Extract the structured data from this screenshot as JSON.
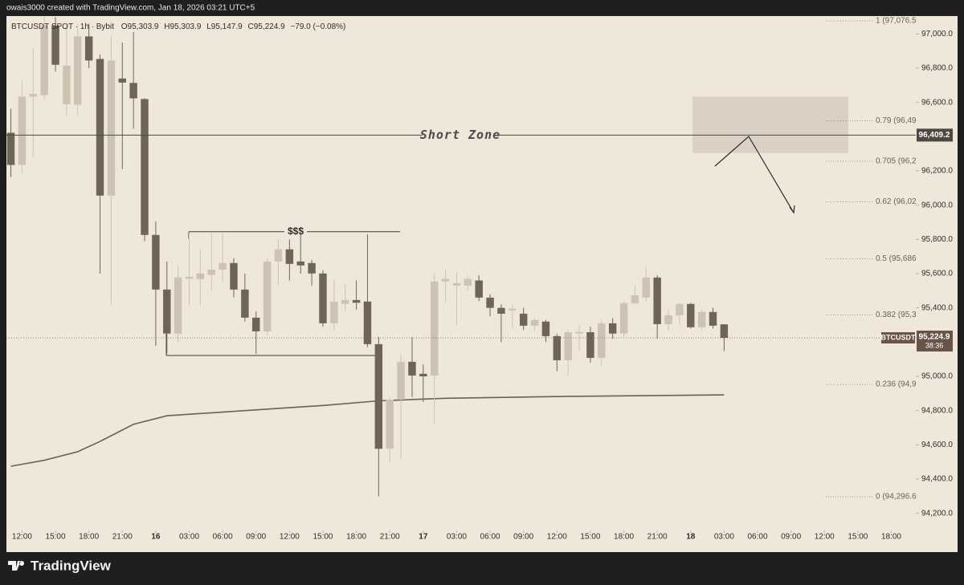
{
  "header": "owais3000 created with TradingView.com, Jan 18, 2026 03:21 UTC+5",
  "footer": {
    "brand": "TradingView"
  },
  "chart_data": {
    "type": "candlestick",
    "legend": {
      "symbol": "BTCUSDT SPOT · 1h · Bybit",
      "open": "O95,303.9",
      "high": "H95,303.9",
      "low": "L95,147.9",
      "close": "C95,224.9",
      "change": "−79.0 (−0.08%)"
    },
    "up_color": "#cdc3b2",
    "down_color": "#6e6557",
    "xlim": [
      -1.4,
      80.2
    ],
    "xticks": [
      {
        "value": 0,
        "label": "12:00"
      },
      {
        "value": 3,
        "label": "15:00"
      },
      {
        "value": 6,
        "label": "18:00"
      },
      {
        "value": 9,
        "label": "21:00"
      },
      {
        "value": 12,
        "label": "16"
      },
      {
        "value": 15,
        "label": "03:00"
      },
      {
        "value": 18,
        "label": "06:00"
      },
      {
        "value": 21,
        "label": "09:00"
      },
      {
        "value": 24,
        "label": "12:00"
      },
      {
        "value": 27,
        "label": "15:00"
      },
      {
        "value": 30,
        "label": "18:00"
      },
      {
        "value": 33,
        "label": "21:00"
      },
      {
        "value": 36,
        "label": "17"
      },
      {
        "value": 39,
        "label": "03:00"
      },
      {
        "value": 42,
        "label": "06:00"
      },
      {
        "value": 45,
        "label": "09:00"
      },
      {
        "value": 48,
        "label": "12:00"
      },
      {
        "value": 51,
        "label": "15:00"
      },
      {
        "value": 54,
        "label": "18:00"
      },
      {
        "value": 57,
        "label": "21:00"
      },
      {
        "value": 60,
        "label": "18"
      },
      {
        "value": 63,
        "label": "03:00"
      },
      {
        "value": 66,
        "label": "06:00"
      },
      {
        "value": 69,
        "label": "09:00"
      },
      {
        "value": 72,
        "label": "12:00"
      },
      {
        "value": 75,
        "label": "15:00"
      },
      {
        "value": 78,
        "label": "18:00"
      }
    ],
    "ylim": [
      94100,
      97100
    ],
    "yticks": [
      {
        "value": 97000,
        "label": "97,000.0"
      },
      {
        "value": 96800,
        "label": "96,800.0"
      },
      {
        "value": 96600,
        "label": "96,600.0"
      },
      {
        "value": 96200,
        "label": "96,200.0"
      },
      {
        "value": 96000,
        "label": "96,000.0"
      },
      {
        "value": 95800,
        "label": "95,800.0"
      },
      {
        "value": 95600,
        "label": "95,600.0"
      },
      {
        "value": 95400,
        "label": "95,400.0"
      },
      {
        "value": 95000,
        "label": "95,000.0"
      },
      {
        "value": 94800,
        "label": "94,800.0"
      },
      {
        "value": 94600,
        "label": "94,600.0"
      },
      {
        "value": 94400,
        "label": "94,400.0"
      },
      {
        "value": 94200,
        "label": "94,200.0"
      }
    ],
    "series": [
      {
        "name": "BTCUSDT",
        "x": [
          -1,
          0,
          1,
          2,
          3,
          4,
          5,
          6,
          7,
          8,
          9,
          10,
          11,
          12,
          13,
          14,
          15,
          16,
          17,
          18,
          19,
          20,
          21,
          22,
          23,
          24,
          25,
          26,
          27,
          28,
          29,
          30,
          31,
          32,
          33,
          34,
          35,
          36,
          37,
          38,
          39,
          40,
          41,
          42,
          43,
          44,
          45,
          46,
          47,
          48,
          49,
          50,
          51,
          52,
          53,
          54,
          55,
          56,
          57,
          58,
          59,
          60,
          61,
          62,
          63
        ],
        "open": [
          96423,
          96235,
          96634,
          96643,
          97050,
          96590,
          96587,
          96986,
          96854,
          96056,
          96740,
          96714,
          96620,
          95826,
          95507,
          95250,
          95570,
          95569,
          95592,
          95624,
          95662,
          95507,
          95343,
          95263,
          95671,
          95742,
          95671,
          95662,
          95601,
          95310,
          95423,
          95446,
          95437,
          95188,
          94577,
          94864,
          95085,
          95015,
          95005,
          95554,
          95530,
          95530,
          95560,
          95460,
          95400,
          95385,
          95366,
          95296,
          95320,
          95235,
          95094,
          95250,
          95258,
          95108,
          95310,
          95250,
          95427,
          95460,
          95577,
          95305,
          95357,
          95423,
          95287,
          95376,
          95303.9
        ],
        "high": [
          96563,
          96728,
          96915,
          97100,
          97100,
          97060,
          97060,
          97060,
          96880,
          96986,
          96950,
          97010,
          96625,
          95906,
          95671,
          95648,
          95836,
          95742,
          95836,
          95836,
          95690,
          95600,
          95380,
          95690,
          95800,
          95800,
          95830,
          95680,
          95620,
          95560,
          95540,
          95560,
          95830,
          95230,
          94880,
          95130,
          95230,
          95070,
          95600,
          95620,
          95610,
          95590,
          95590,
          95480,
          95420,
          95420,
          95400,
          95340,
          95330,
          95250,
          95270,
          95300,
          95290,
          95330,
          95340,
          95440,
          95530,
          95640,
          95590,
          95390,
          95430,
          95430,
          95390,
          95400,
          95303.9
        ],
        "low": [
          96164,
          96188,
          96282,
          96620,
          96780,
          96520,
          96520,
          96800,
          95600,
          95423,
          96210,
          96446,
          95790,
          95178,
          95132,
          95202,
          95413,
          95413,
          95500,
          95554,
          95460,
          95320,
          95130,
          95240,
          95540,
          95560,
          95600,
          95530,
          95290,
          95270,
          95380,
          95390,
          95170,
          94300,
          94500,
          94520,
          94880,
          94850,
          94720,
          95430,
          95300,
          95500,
          95440,
          95350,
          95200,
          95280,
          95270,
          95270,
          95200,
          95030,
          95010,
          95150,
          95080,
          95060,
          95220,
          95230,
          95420,
          95440,
          95220,
          95270,
          95300,
          95280,
          95270,
          95280,
          95147.9
        ],
        "close": [
          96235,
          96634,
          96650,
          97050,
          96820,
          96815,
          96986,
          96845,
          96056,
          96845,
          96716,
          96624,
          95826,
          95507,
          95250,
          95578,
          95582,
          95601,
          95624,
          95662,
          95507,
          95343,
          95263,
          95671,
          95742,
          95657,
          95648,
          95601,
          95310,
          95437,
          95446,
          95430,
          95188,
          94577,
          94864,
          95085,
          95005,
          95000,
          95554,
          95570,
          95545,
          95570,
          95460,
          95400,
          95366,
          95395,
          95296,
          95329,
          95235,
          95094,
          95258,
          95260,
          95108,
          95310,
          95250,
          95427,
          95474,
          95577,
          95305,
          95357,
          95423,
          95287,
          95376,
          95296,
          95224.9
        ]
      }
    ],
    "ema": {
      "color": "#6b6154",
      "x": [
        -1,
        2,
        5,
        7,
        10,
        13,
        20,
        27,
        32,
        38,
        49,
        63
      ],
      "values": [
        94475,
        94510,
        94560,
        94620,
        94720,
        94770,
        94800,
        94830,
        94857,
        94872,
        94883,
        94892
      ]
    },
    "last_price": {
      "value": 95224.9,
      "label": "95,224.9",
      "countdown": "38:36"
    },
    "short_zone": {
      "label": "Short Zone",
      "price": 96409.2,
      "price_label": "96,409.2",
      "top": 96634,
      "bottom": 96305
    },
    "liquidity": {
      "label": "$$$",
      "high": 95845,
      "low": 95122
    },
    "fib_levels": [
      {
        "price": 97076.5,
        "label": "1 (97,076.5"
      },
      {
        "price": 96492.7,
        "label": "0.79 (96,49"
      },
      {
        "price": 96256.4,
        "label": "0.705 (96,2"
      },
      {
        "price": 96020.0,
        "label": "0.62 (96,02"
      },
      {
        "price": 95686.55,
        "label": "0.5 (95,686"
      },
      {
        "price": 95358.5,
        "label": "0.382 (95,3"
      },
      {
        "price": 94952.7,
        "label": "0.236 (94,9"
      },
      {
        "price": 94296.6,
        "label": "0 (94,296.6"
      }
    ]
  }
}
